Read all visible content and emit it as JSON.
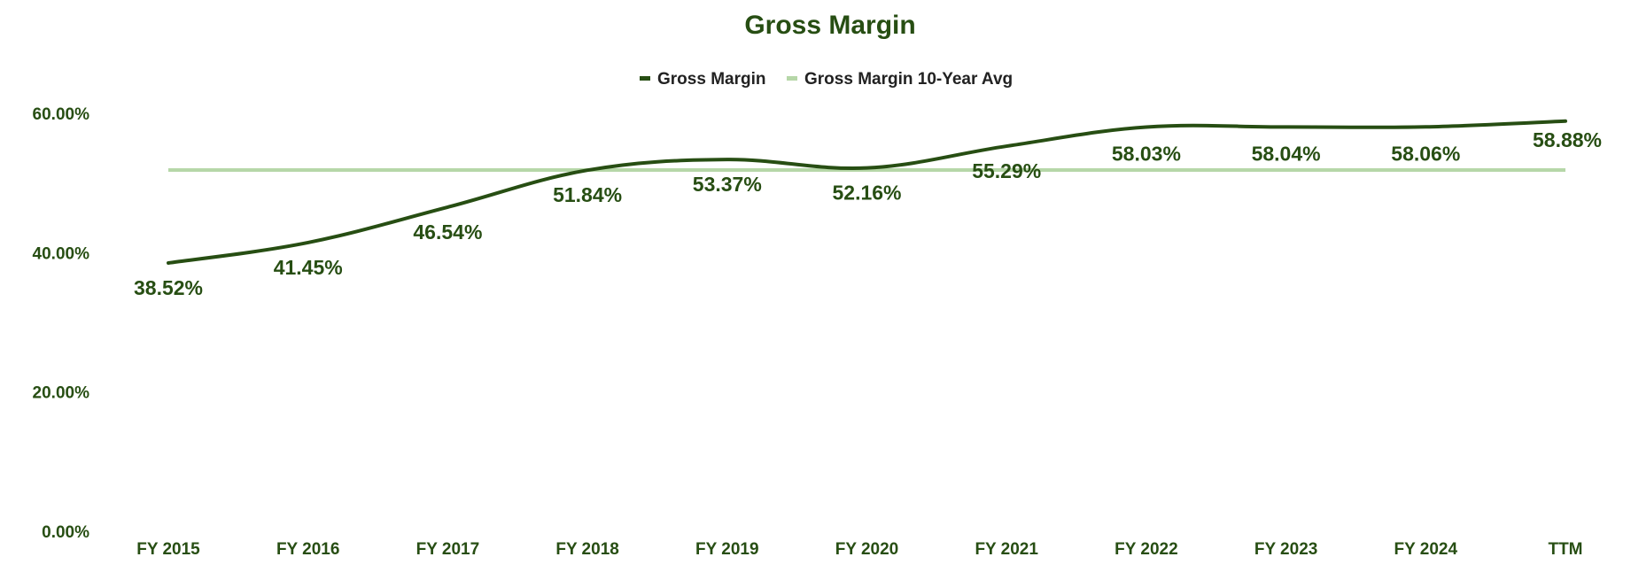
{
  "chart_data": {
    "type": "line",
    "title": "Gross Margin",
    "categories": [
      "FY 2015",
      "FY 2016",
      "FY 2017",
      "FY 2018",
      "FY 2019",
      "FY 2020",
      "FY 2021",
      "FY 2022",
      "FY 2023",
      "FY 2024",
      "TTM"
    ],
    "series": [
      {
        "name": "Gross Margin",
        "color": "#274e13",
        "values": [
          38.52,
          41.45,
          46.54,
          51.84,
          53.37,
          52.16,
          55.29,
          58.03,
          58.04,
          58.06,
          58.88
        ],
        "data_labels": [
          "38.52%",
          "41.45%",
          "46.54%",
          "51.84%",
          "53.37%",
          "52.16%",
          "55.29%",
          "58.03%",
          "58.04%",
          "58.06%",
          "58.88%"
        ]
      },
      {
        "name": "Gross Margin 10-Year Avg",
        "color": "#b6d7a8",
        "values": [
          51.86,
          51.86,
          51.86,
          51.86,
          51.86,
          51.86,
          51.86,
          51.86,
          51.86,
          51.86,
          51.86
        ]
      }
    ],
    "ylim": [
      0,
      60
    ],
    "yticks": [
      0,
      20,
      40,
      60
    ],
    "ytick_labels": [
      "0.00%",
      "20.00%",
      "40.00%",
      "60.00%"
    ],
    "xlabel": "",
    "ylabel": "",
    "legend": "top-center",
    "grid": false
  }
}
